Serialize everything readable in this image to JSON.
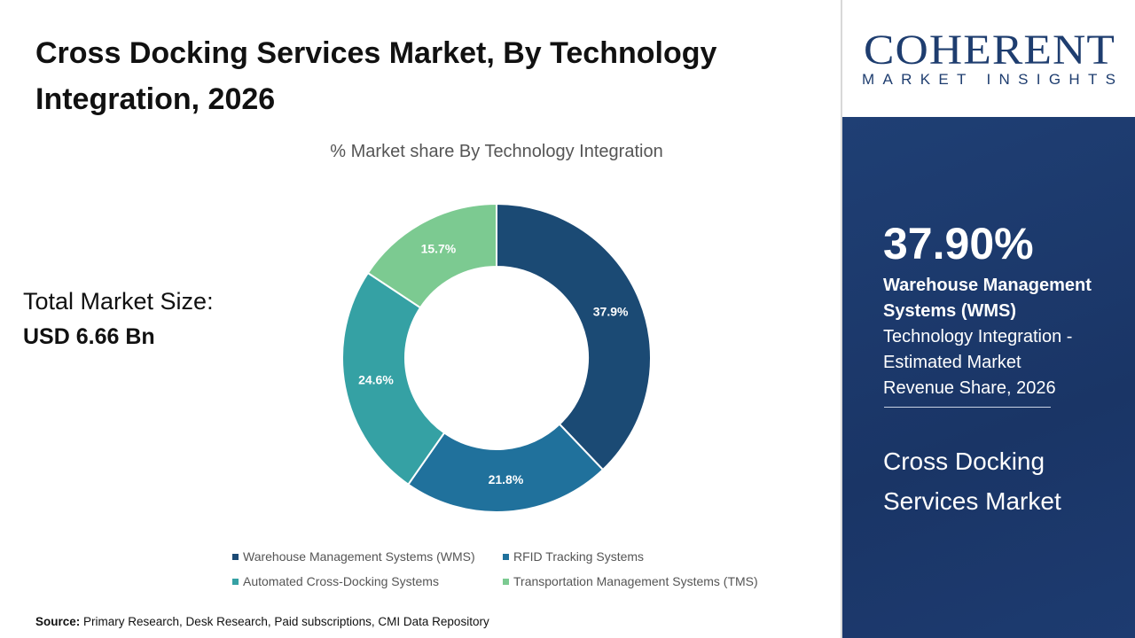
{
  "chart_data": {
    "type": "donut",
    "title": "Cross Docking Services Market, By  Technology Integration, 2026",
    "subtitle": "% Market share By  Technology Integration",
    "categories": [
      "Warehouse Management Systems (WMS)",
      "RFID Tracking Systems",
      "Automated Cross-Docking Systems",
      "Transportation Management Systems (TMS)"
    ],
    "values": [
      37.9,
      21.8,
      24.6,
      15.7
    ],
    "value_labels": [
      "37.9%",
      "21.8%",
      "24.6%",
      "15.7%"
    ],
    "colors": [
      "#1b4a74",
      "#20719c",
      "#35a1a4",
      "#7cca91"
    ]
  },
  "market_size": {
    "label": "Total Market Size:",
    "value": "USD 6.66 Bn"
  },
  "brand": {
    "name": "COHERENT",
    "tagline": "MARKET INSIGHTS"
  },
  "panel": {
    "headline": "37.90%",
    "segment": "Warehouse Management Systems (WMS)",
    "description": "Technology Integration - Estimated Market Revenue Share, 2026",
    "market": "Cross Docking Services Market"
  },
  "source": {
    "label": "Source:",
    "text": "Primary Research, Desk Research, Paid subscriptions, CMI Data Repository"
  }
}
